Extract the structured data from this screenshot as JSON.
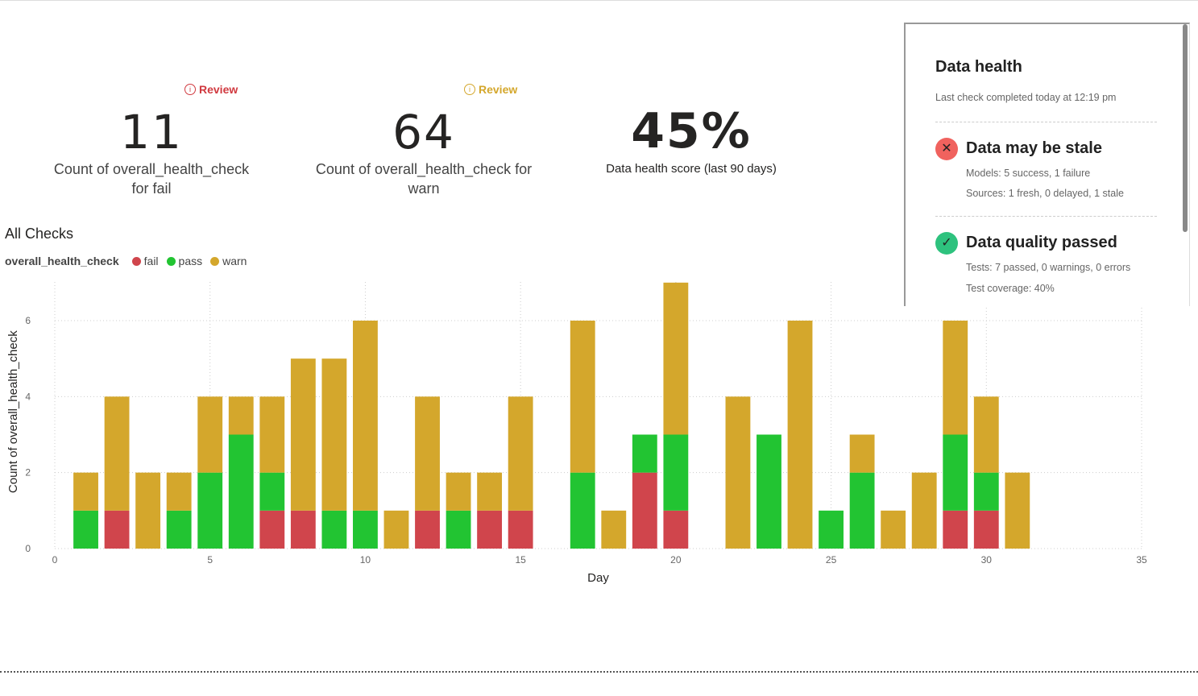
{
  "kpis": [
    {
      "review": "Review",
      "review_color": "#d0393f",
      "value": "11",
      "label": "Count of overall_health_check for fail"
    },
    {
      "review": "Review",
      "review_color": "#d4a72c",
      "value": "64",
      "label": "Count of overall_health_check for warn"
    },
    {
      "value": "45%",
      "label": "Data health score (last 90 days)"
    }
  ],
  "panel": {
    "title": "Data health",
    "last_check": "Last check completed today at 12:19 pm",
    "stale": {
      "title": "Data may be stale",
      "icon": "x-circle-icon",
      "color": "#f0625e",
      "lines": [
        "Models: 5 success, 1 failure",
        "Sources: 1 fresh, 0 delayed, 1 stale"
      ]
    },
    "quality": {
      "title": "Data quality passed",
      "icon": "check-circle-icon",
      "color": "#2ec27e",
      "lines": [
        "Tests: 7 passed, 0 warnings, 0 errors",
        "Test coverage: 40%"
      ]
    }
  },
  "chart_data": {
    "type": "bar",
    "stacked": true,
    "title": "All Checks",
    "legend_title": "overall_health_check",
    "legend_position": "top-left",
    "xlabel": "Day",
    "ylabel": "Count of overall_health_check",
    "xlim": [
      0,
      35
    ],
    "ylim": [
      0,
      7
    ],
    "xticks": [
      0,
      5,
      10,
      15,
      20,
      25,
      30,
      35
    ],
    "yticks": [
      0,
      2,
      4,
      6
    ],
    "grid": true,
    "x": [
      1,
      2,
      3,
      4,
      5,
      6,
      7,
      8,
      9,
      10,
      11,
      12,
      13,
      14,
      15,
      16,
      17,
      18,
      19,
      20,
      21,
      22,
      23,
      24,
      25,
      26,
      27,
      28,
      29,
      30,
      31
    ],
    "series": [
      {
        "name": "fail",
        "color": "#d0454c",
        "values": [
          0,
          1,
          0,
          0,
          0,
          0,
          1,
          1,
          0,
          0,
          0,
          1,
          0,
          1,
          1,
          0,
          0,
          0,
          2,
          1,
          0,
          0,
          0,
          0,
          0,
          0,
          0,
          0,
          1,
          1,
          0
        ]
      },
      {
        "name": "pass",
        "color": "#22c432",
        "values": [
          1,
          0,
          0,
          1,
          2,
          3,
          1,
          0,
          1,
          1,
          0,
          0,
          1,
          0,
          0,
          0,
          2,
          0,
          1,
          2,
          0,
          0,
          3,
          0,
          1,
          2,
          0,
          0,
          2,
          1,
          0
        ]
      },
      {
        "name": "warn",
        "color": "#d4a72c",
        "values": [
          1,
          3,
          2,
          1,
          2,
          1,
          2,
          4,
          4,
          5,
          1,
          3,
          1,
          1,
          3,
          0,
          4,
          1,
          0,
          4,
          0,
          4,
          0,
          6,
          0,
          1,
          1,
          2,
          3,
          2,
          2
        ]
      }
    ]
  }
}
